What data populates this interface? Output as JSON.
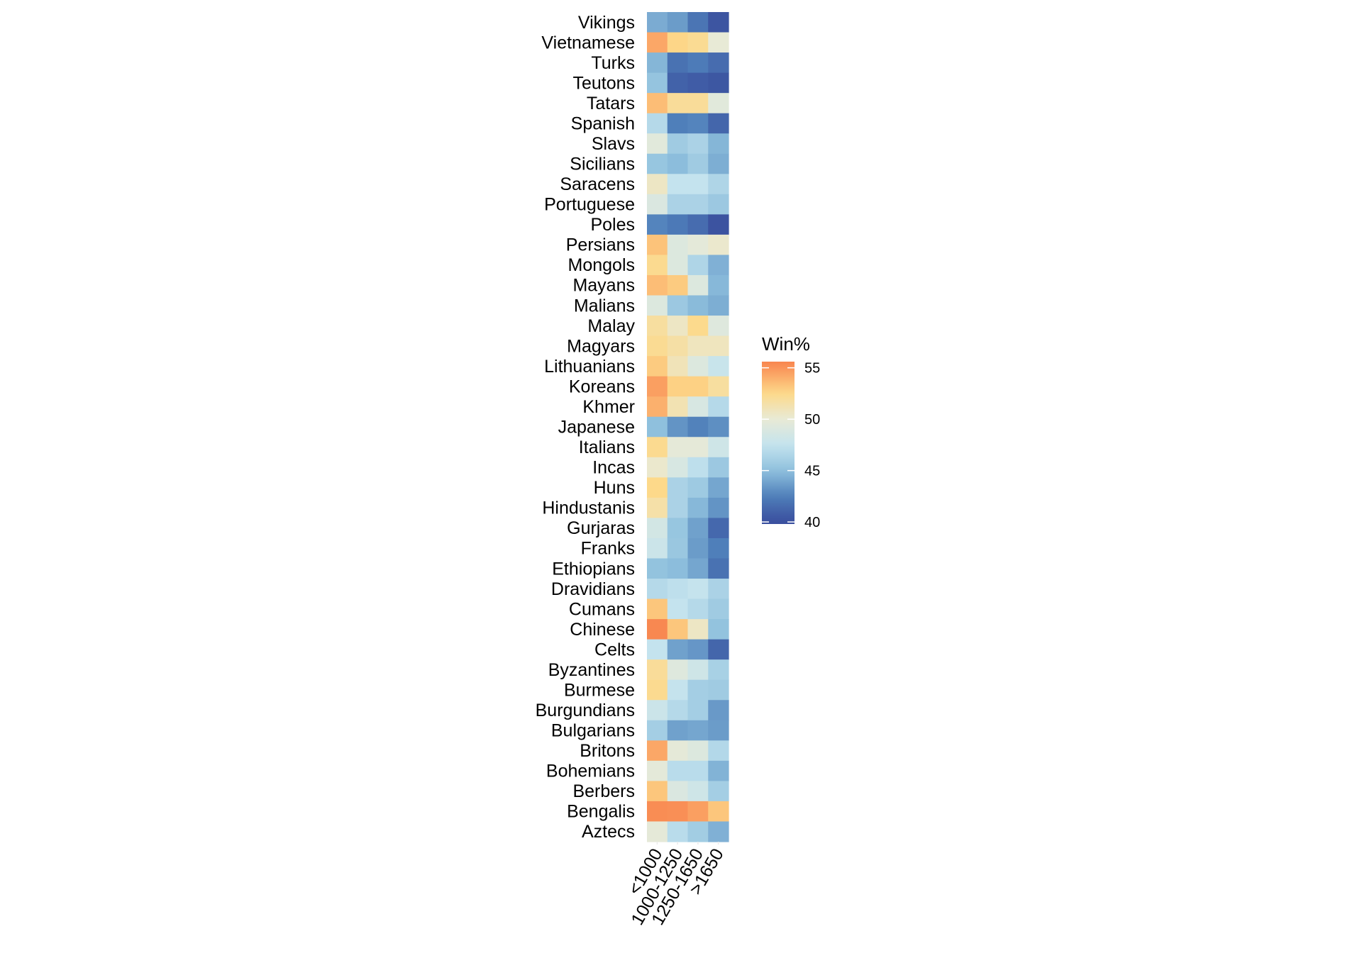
{
  "chart_data": {
    "type": "heatmap",
    "title": "",
    "xlabel": "",
    "ylabel": "",
    "x_categories": [
      "<1000",
      "1000-1250",
      "1250-1650",
      ">1650"
    ],
    "y_categories": [
      "Vikings",
      "Vietnamese",
      "Turks",
      "Teutons",
      "Tatars",
      "Spanish",
      "Slavs",
      "Sicilians",
      "Saracens",
      "Portuguese",
      "Poles",
      "Persians",
      "Mongols",
      "Mayans",
      "Malians",
      "Malay",
      "Magyars",
      "Lithuanians",
      "Koreans",
      "Khmer",
      "Japanese",
      "Italians",
      "Incas",
      "Huns",
      "Hindustanis",
      "Gurjaras",
      "Franks",
      "Ethiopians",
      "Dravidians",
      "Cumans",
      "Chinese",
      "Celts",
      "Byzantines",
      "Burmese",
      "Burgundians",
      "Bulgarians",
      "Britons",
      "Bohemians",
      "Berbers",
      "Bengalis",
      "Aztecs"
    ],
    "values": [
      [
        44.2,
        43.6,
        42.0,
        40.3
      ],
      [
        54.3,
        52.6,
        52.2,
        50.0
      ],
      [
        44.6,
        41.8,
        42.3,
        41.5
      ],
      [
        45.3,
        41.0,
        40.7,
        40.4
      ],
      [
        53.5,
        52.0,
        52.0,
        49.5
      ],
      [
        46.8,
        42.5,
        42.7,
        41.2
      ],
      [
        49.5,
        45.8,
        46.3,
        44.6
      ],
      [
        45.4,
        44.9,
        45.8,
        44.3
      ],
      [
        50.6,
        47.5,
        47.5,
        46.5
      ],
      [
        49.0,
        46.3,
        46.3,
        45.6
      ],
      [
        42.7,
        42.2,
        41.5,
        40.2
      ],
      [
        53.3,
        49.2,
        49.7,
        50.3
      ],
      [
        52.3,
        49.2,
        46.5,
        44.4
      ],
      [
        53.5,
        53.0,
        49.2,
        44.7
      ],
      [
        49.2,
        45.6,
        44.8,
        44.3
      ],
      [
        51.8,
        50.6,
        52.4,
        49.3
      ],
      [
        52.2,
        51.6,
        50.8,
        50.8
      ],
      [
        53.0,
        51.0,
        49.2,
        47.8
      ],
      [
        54.6,
        52.8,
        52.8,
        51.8
      ],
      [
        54.0,
        51.2,
        48.8,
        46.8
      ],
      [
        45.0,
        43.3,
        42.6,
        43.1
      ],
      [
        52.3,
        49.8,
        49.8,
        48.2
      ],
      [
        50.3,
        48.8,
        47.2,
        45.6
      ],
      [
        52.5,
        46.3,
        45.7,
        44.0
      ],
      [
        51.5,
        46.3,
        44.7,
        43.3
      ],
      [
        48.5,
        45.4,
        43.8,
        41.3
      ],
      [
        48.0,
        45.5,
        43.6,
        42.5
      ],
      [
        45.2,
        44.9,
        44.0,
        41.8
      ],
      [
        46.8,
        47.2,
        47.6,
        46.3
      ],
      [
        53.2,
        47.5,
        46.8,
        45.8
      ],
      [
        55.5,
        53.2,
        50.6,
        45.2
      ],
      [
        47.5,
        43.8,
        43.4,
        41.2
      ],
      [
        52.0,
        49.3,
        48.2,
        46.2
      ],
      [
        52.3,
        47.6,
        46.0,
        45.8
      ],
      [
        48.0,
        46.8,
        46.0,
        43.5
      ],
      [
        46.0,
        43.8,
        44.0,
        43.6
      ],
      [
        54.3,
        49.8,
        49.2,
        46.7
      ],
      [
        49.7,
        47.0,
        47.0,
        44.5
      ],
      [
        53.2,
        49.0,
        48.2,
        46.0
      ],
      [
        55.3,
        55.2,
        54.6,
        53.2
      ],
      [
        49.8,
        47.0,
        45.9,
        44.4
      ]
    ],
    "legend": {
      "title": "Win%",
      "ticks": [
        "40",
        "45",
        "50",
        "55"
      ],
      "tick_values": [
        40,
        45,
        50,
        55
      ],
      "range": [
        39.8,
        55.6
      ],
      "placement": "right"
    },
    "colorscale": [
      [
        40,
        "#3a4f9e"
      ],
      [
        42.5,
        "#4f7fba"
      ],
      [
        45,
        "#8fc0dd"
      ],
      [
        47.5,
        "#c4e3ee"
      ],
      [
        50,
        "#e8ead6"
      ],
      [
        52.5,
        "#fdd98a"
      ],
      [
        55,
        "#fa9459"
      ],
      [
        55.6,
        "#f8864f"
      ]
    ],
    "grid": false
  }
}
